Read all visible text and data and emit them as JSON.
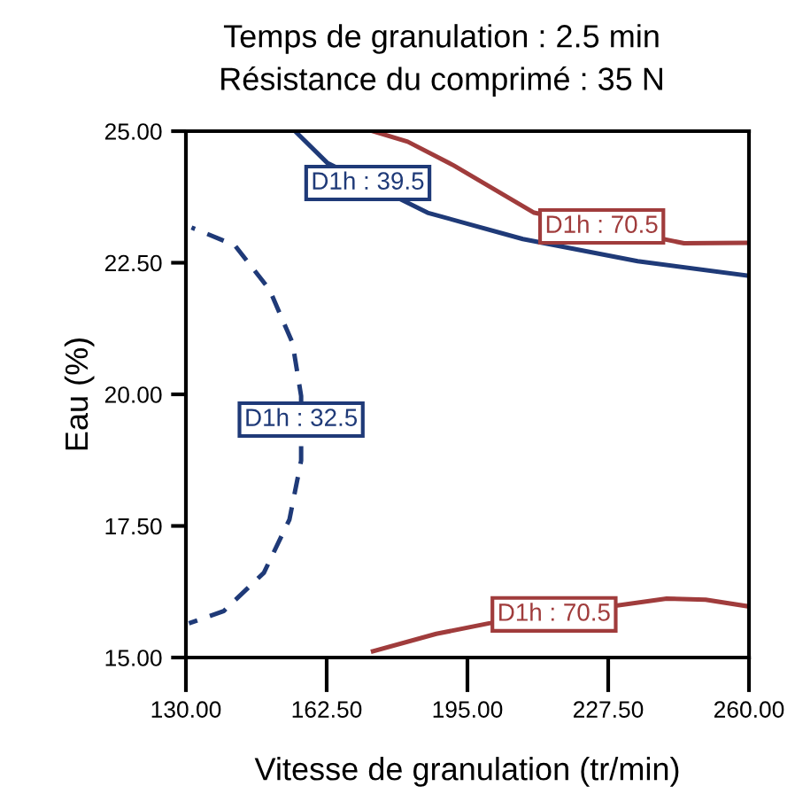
{
  "chart_data": {
    "type": "line",
    "title": "Temps de granulation : 2.5 min",
    "subtitle": "Résistance du comprimé : 35 N",
    "xlabel": "Vitesse de granulation (tr/min)",
    "ylabel": "Eau (%)",
    "xlim": [
      130,
      260
    ],
    "ylim": [
      15,
      25
    ],
    "xticks": [
      {
        "value": 130,
        "label": "130.00"
      },
      {
        "value": 162.5,
        "label": "162.50"
      },
      {
        "value": 195,
        "label": "195.00"
      },
      {
        "value": 227.5,
        "label": "227.50"
      },
      {
        "value": 260,
        "label": "260.00"
      }
    ],
    "yticks": [
      {
        "value": 15,
        "label": "15.00"
      },
      {
        "value": 17.5,
        "label": "17.50"
      },
      {
        "value": 20,
        "label": "20.00"
      },
      {
        "value": 22.5,
        "label": "22.50"
      },
      {
        "value": 25,
        "label": "25.00"
      }
    ],
    "grid": false,
    "legend": false,
    "series": [
      {
        "color": "#1f3a78",
        "line_style": "solid",
        "x": [
          155.2,
          162.6,
          185.8,
          207.8,
          234.3,
          260
        ],
        "values": [
          25,
          24.4,
          23.45,
          22.95,
          22.53,
          22.25
        ]
      },
      {
        "color": "#1f3a78",
        "line_style": "dashed",
        "x": [
          131.3,
          141.3,
          149.3,
          154.6,
          156.6,
          156.6,
          153.9,
          148.0,
          138.7,
          130.7
        ],
        "values": [
          23.17,
          22.83,
          21.99,
          20.98,
          19.97,
          18.74,
          17.62,
          16.61,
          15.88,
          15.65
        ]
      },
      {
        "color": "#a03c3c",
        "line_style": "solid",
        "x": [
          173.2,
          181.2,
          191.8,
          201.1,
          210.4,
          245,
          260
        ],
        "values": [
          25,
          24.8,
          24.35,
          23.9,
          23.45,
          22.87,
          22.88
        ]
      },
      {
        "color": "#a03c3c",
        "line_style": "solid",
        "x": [
          173.2,
          187.8,
          200,
          241,
          250,
          260
        ],
        "values": [
          15.12,
          15.45,
          15.65,
          16.12,
          16.1,
          15.97
        ]
      }
    ],
    "annotations": [
      {
        "text": "D1h : 39.5",
        "x": 172,
        "y": 24.015
      },
      {
        "text": "D1h : 32.5",
        "x": 156.6,
        "y": 19.52
      },
      {
        "text": "D1h : 70.5",
        "x": 226,
        "y": 23.19
      },
      {
        "text": "D1h : 70.5",
        "x": 215,
        "y": 15.82
      }
    ]
  }
}
